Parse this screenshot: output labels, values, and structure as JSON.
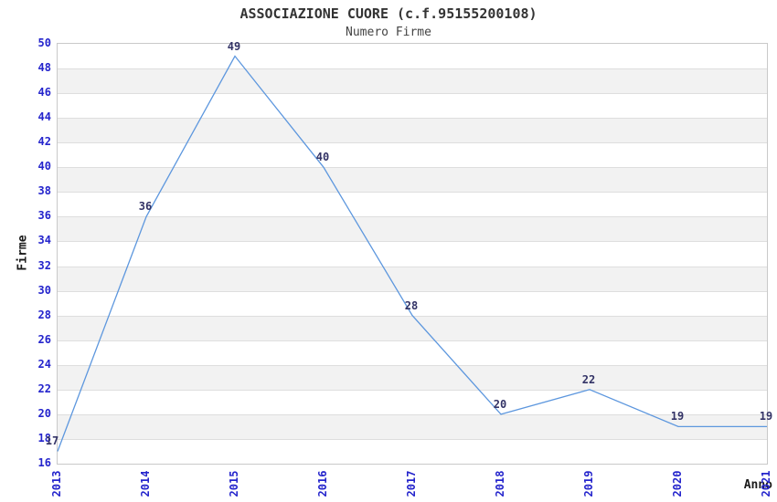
{
  "header": {
    "title": "ASSOCIAZIONE CUORE (c.f.95155200108)",
    "subtitle": "Numero Firme"
  },
  "chart_data": {
    "type": "line",
    "title": "ASSOCIAZIONE CUORE (c.f.95155200108)",
    "subtitle": "Numero Firme",
    "xlabel": "Anno",
    "ylabel": "Firme",
    "categories": [
      "2013",
      "2014",
      "2015",
      "2016",
      "2017",
      "2018",
      "2019",
      "2020",
      "2021"
    ],
    "values": [
      17,
      36,
      49,
      40,
      28,
      20,
      22,
      19,
      19
    ],
    "point_labels": [
      "17",
      "36",
      "49",
      "40",
      "28",
      "20",
      "22",
      "19",
      "19"
    ],
    "ylim": [
      16,
      50
    ],
    "ytick_step": 2,
    "yticks": [
      16,
      18,
      20,
      22,
      24,
      26,
      28,
      30,
      32,
      34,
      36,
      38,
      40,
      42,
      44,
      46,
      48,
      50
    ],
    "grid": true,
    "legend": "none",
    "colors": {
      "line": "#5d97de",
      "tick_label": "#2424cc",
      "point_label": "#333366",
      "band_fill": "#f2f2f2",
      "gridline": "#dedede",
      "plot_border": "#c9c9c9",
      "title": "#333333",
      "subtitle": "#444444",
      "axis_title": "#1a1a1a"
    }
  }
}
